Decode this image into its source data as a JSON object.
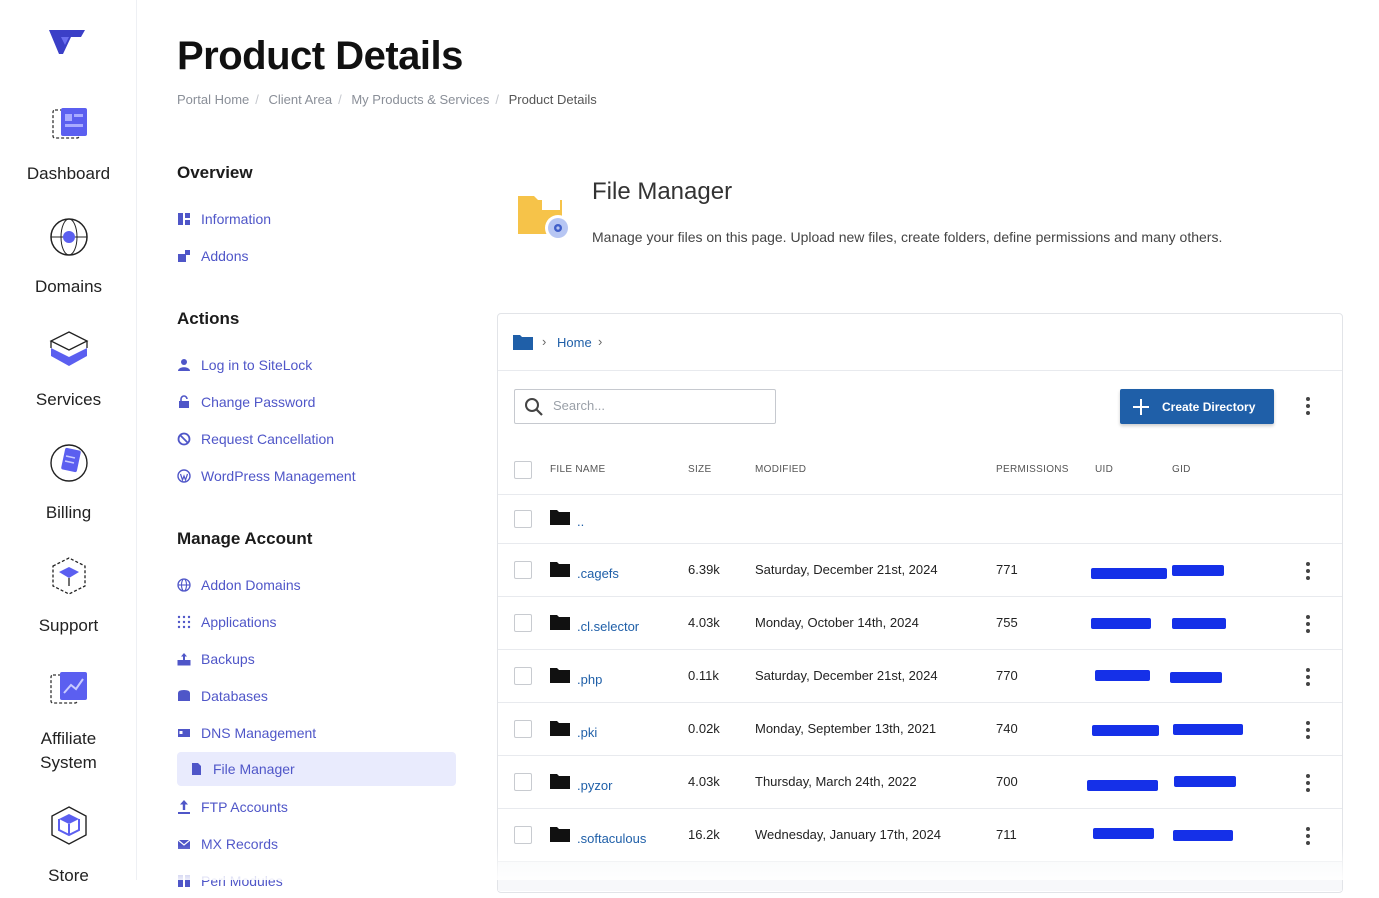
{
  "rail": {
    "items": [
      {
        "label": "Dashboard",
        "icon": "dashboard-icon"
      },
      {
        "label": "Domains",
        "icon": "globe-icon"
      },
      {
        "label": "Services",
        "icon": "layers-icon"
      },
      {
        "label": "Billing",
        "icon": "billing-icon"
      },
      {
        "label": "Support",
        "icon": "support-icon"
      },
      {
        "label": "Affiliate System",
        "icon": "affiliate-icon"
      },
      {
        "label": "Store",
        "icon": "store-icon"
      }
    ]
  },
  "page": {
    "title": "Product Details",
    "breadcrumb": [
      "Portal Home",
      "Client Area",
      "My Products & Services",
      "Product Details"
    ]
  },
  "sidebar": {
    "overview": {
      "title": "Overview",
      "items": [
        {
          "label": "Information"
        },
        {
          "label": "Addons"
        }
      ]
    },
    "actions": {
      "title": "Actions",
      "items": [
        {
          "label": "Log in to SiteLock"
        },
        {
          "label": "Change Password"
        },
        {
          "label": "Request Cancellation"
        },
        {
          "label": "WordPress Management"
        }
      ]
    },
    "manage": {
      "title": "Manage Account",
      "items": [
        {
          "label": "Addon Domains"
        },
        {
          "label": "Applications"
        },
        {
          "label": "Backups"
        },
        {
          "label": "Databases"
        },
        {
          "label": "DNS Management"
        },
        {
          "label": "File Manager"
        },
        {
          "label": "FTP Accounts"
        },
        {
          "label": "MX Records"
        },
        {
          "label": "Perl Modules"
        }
      ]
    }
  },
  "file_manager": {
    "title": "File Manager",
    "description": "Manage your files on this page. Upload new files, create folders, define permissions and many others.",
    "path_home": "Home",
    "search_placeholder": "Search...",
    "create_button": "Create Directory",
    "columns": {
      "name": "FILE NAME",
      "size": "SIZE",
      "modified": "MODIFIED",
      "permissions": "PERMISSIONS",
      "uid": "UID",
      "gid": "GID"
    },
    "parent_dir": "..",
    "rows": [
      {
        "name": ".cagefs",
        "size": "6.39k",
        "modified": "Saturday, December 21st, 2024",
        "permissions": "771"
      },
      {
        "name": ".cl.selector",
        "size": "4.03k",
        "modified": "Monday, October 14th, 2024",
        "permissions": "755"
      },
      {
        "name": ".php",
        "size": "0.11k",
        "modified": "Saturday, December 21st, 2024",
        "permissions": "770"
      },
      {
        "name": ".pki",
        "size": "0.02k",
        "modified": "Monday, September 13th, 2021",
        "permissions": "740"
      },
      {
        "name": ".pyzor",
        "size": "4.03k",
        "modified": "Thursday, March 24th, 2022",
        "permissions": "700"
      },
      {
        "name": ".softaculous",
        "size": "16.2k",
        "modified": "Wednesday, January 17th, 2024",
        "permissions": "711"
      }
    ]
  },
  "colors": {
    "accent": "#4f56c8",
    "primary_button": "#1f5fa8",
    "redaction": "#1530e8",
    "folder": "#f6c349"
  }
}
